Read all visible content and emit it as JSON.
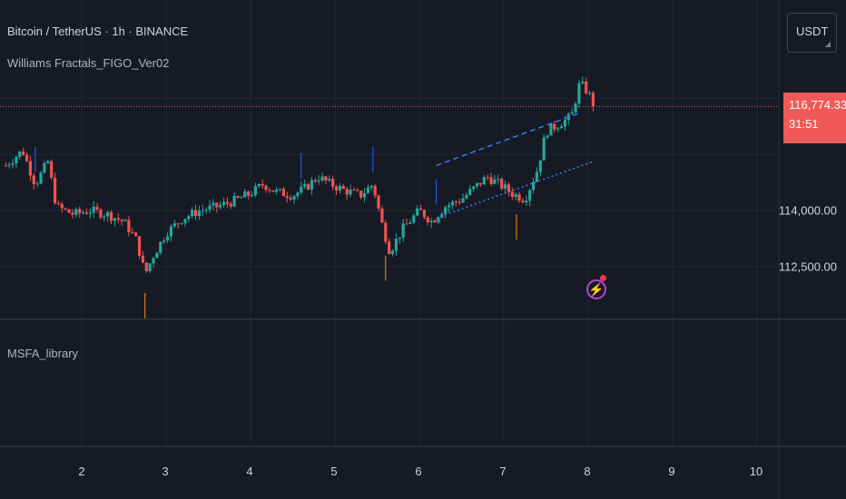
{
  "header": {
    "symbol_title": "Bitcoin / TetherUS · 1h · BINANCE",
    "indicator_name": "Williams Fractals_FIGO_Ver02"
  },
  "lower_pane": {
    "title": "MSFA_library"
  },
  "currency_button": {
    "label": "USDT"
  },
  "last_price": {
    "price": "116,774.33",
    "countdown": "31:51",
    "color": "#f05a56"
  },
  "price_axis": {
    "labels": [
      {
        "text": "114,000.00",
        "value": 114000
      },
      {
        "text": "112,500.00",
        "value": 112500
      }
    ]
  },
  "time_axis": {
    "labels": [
      "2",
      "3",
      "4",
      "5",
      "6",
      "7",
      "8",
      "9",
      "10"
    ]
  },
  "colors": {
    "background": "#161a25",
    "up_candle": "#26a69a",
    "down_candle": "#ef5350",
    "grid": "#232735",
    "trendline": "#3c7bf4",
    "fractal_up": "#2962ff",
    "fractal_down": "#ff9800"
  },
  "icons": {
    "alert": "lightning-icon",
    "currency_dropdown": "chevron-down-icon"
  },
  "chart_data": {
    "type": "candlestick",
    "title": "Bitcoin / TetherUS · 1h · BINANCE",
    "y_range": [
      111700,
      117800
    ],
    "x_range": [
      1.1,
      10.4
    ],
    "last_price": 116774.33,
    "close_path": [
      [
        1.1,
        115200
      ],
      [
        1.3,
        115600
      ],
      [
        1.45,
        114700
      ],
      [
        1.6,
        115300
      ],
      [
        1.7,
        114100
      ],
      [
        1.9,
        113900
      ],
      [
        2.1,
        114000
      ],
      [
        2.3,
        113900
      ],
      [
        2.5,
        113700
      ],
      [
        2.65,
        113200
      ],
      [
        2.75,
        112300
      ],
      [
        2.85,
        112800
      ],
      [
        3.0,
        113400
      ],
      [
        3.2,
        113800
      ],
      [
        3.4,
        114000
      ],
      [
        3.6,
        114100
      ],
      [
        3.8,
        114250
      ],
      [
        4.0,
        114450
      ],
      [
        4.15,
        114700
      ],
      [
        4.3,
        114500
      ],
      [
        4.5,
        114400
      ],
      [
        4.65,
        114600
      ],
      [
        4.8,
        114900
      ],
      [
        4.95,
        114700
      ],
      [
        5.1,
        114550
      ],
      [
        5.3,
        114400
      ],
      [
        5.45,
        114700
      ],
      [
        5.55,
        113700
      ],
      [
        5.65,
        112900
      ],
      [
        5.8,
        113500
      ],
      [
        6.0,
        114000
      ],
      [
        6.15,
        113700
      ],
      [
        6.3,
        114100
      ],
      [
        6.5,
        114300
      ],
      [
        6.65,
        114600
      ],
      [
        6.8,
        114900
      ],
      [
        6.95,
        114700
      ],
      [
        7.1,
        114450
      ],
      [
        7.25,
        114300
      ],
      [
        7.4,
        115100
      ],
      [
        7.5,
        116100
      ],
      [
        7.65,
        116300
      ],
      [
        7.8,
        116500
      ],
      [
        7.9,
        117400
      ],
      [
        8.0,
        117150
      ],
      [
        8.07,
        116780
      ]
    ],
    "series": [
      {
        "name": "Upper trendline",
        "style": "dashed",
        "x": [
          6.2,
          7.9
        ],
        "y": [
          115200,
          116600
        ]
      },
      {
        "name": "Lower trendline",
        "style": "dotted",
        "x": [
          6.2,
          8.05
        ],
        "y": [
          113800,
          115300
        ]
      }
    ],
    "fractal_up_x": [
      1.45,
      4.6,
      5.45,
      6.2
    ],
    "fractal_down_x": [
      2.75,
      5.6,
      7.15
    ]
  }
}
